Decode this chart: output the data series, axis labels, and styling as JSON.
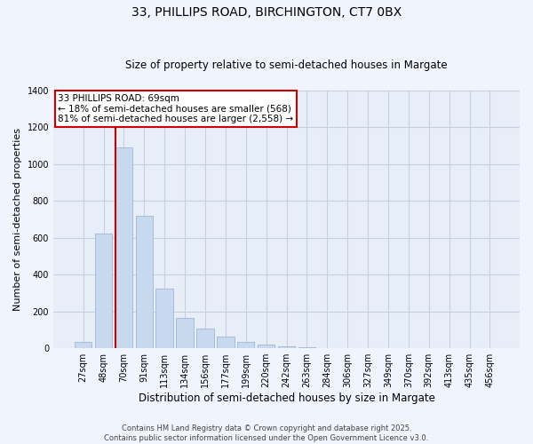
{
  "title1": "33, PHILLIPS ROAD, BIRCHINGTON, CT7 0BX",
  "title2": "Size of property relative to semi-detached houses in Margate",
  "xlabel": "Distribution of semi-detached houses by size in Margate",
  "ylabel": "Number of semi-detached properties",
  "categories": [
    "27sqm",
    "48sqm",
    "70sqm",
    "91sqm",
    "113sqm",
    "134sqm",
    "156sqm",
    "177sqm",
    "199sqm",
    "220sqm",
    "242sqm",
    "263sqm",
    "284sqm",
    "306sqm",
    "327sqm",
    "349sqm",
    "370sqm",
    "392sqm",
    "413sqm",
    "435sqm",
    "456sqm"
  ],
  "values": [
    35,
    620,
    1090,
    720,
    325,
    165,
    105,
    65,
    35,
    20,
    10,
    5,
    2,
    1,
    0,
    0,
    0,
    0,
    0,
    0,
    0
  ],
  "bar_color": "#c8d8ee",
  "bar_edge_color": "#a8bcd8",
  "vline_color": "#cc0000",
  "property_label": "33 PHILLIPS ROAD: 69sqm",
  "annotation_line1": "← 18% of semi-detached houses are smaller (568)",
  "annotation_line2": "81% of semi-detached houses are larger (2,558) →",
  "annotation_box_color": "#ffffff",
  "annotation_box_edge_color": "#cc0000",
  "ylim": [
    0,
    1400
  ],
  "yticks": [
    0,
    200,
    400,
    600,
    800,
    1000,
    1200,
    1400
  ],
  "grid_color": "#c8d0e0",
  "bg_color": "#e8eef8",
  "fig_bg_color": "#f0f4fc",
  "footer1": "Contains HM Land Registry data © Crown copyright and database right 2025.",
  "footer2": "Contains public sector information licensed under the Open Government Licence v3.0.",
  "title1_fontsize": 10,
  "title2_fontsize": 8.5,
  "ylabel_fontsize": 8,
  "xlabel_fontsize": 8.5,
  "tick_fontsize": 7,
  "annot_fontsize": 7.5,
  "footer_fontsize": 6
}
